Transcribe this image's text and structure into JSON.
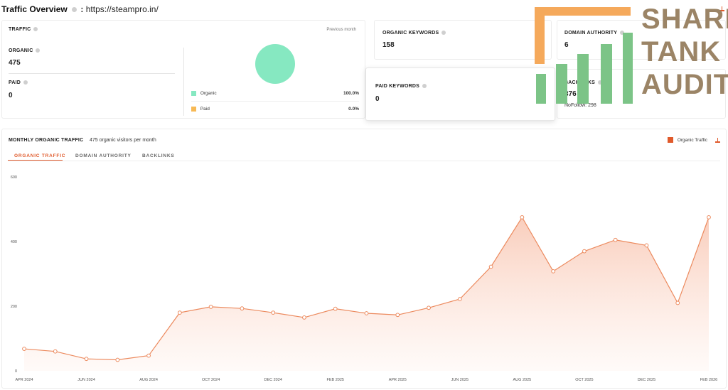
{
  "header": {
    "title": "Traffic Overview",
    "separator": ":",
    "url": "https://steampro.in/"
  },
  "traffic_card": {
    "label": "TRAFFIC",
    "period": "Previous month",
    "organic_label": "ORGANIC",
    "organic_value": "475",
    "paid_label": "PAID",
    "paid_value": "0",
    "legend": [
      {
        "name": "Organic",
        "percent": "100.0%",
        "color": "#86e8c1"
      },
      {
        "name": "Paid",
        "percent": "0.0%",
        "color": "#f7b955"
      }
    ]
  },
  "organic_keywords": {
    "label": "ORGANIC KEYWORDS",
    "value": "158"
  },
  "domain_authority": {
    "label": "DOMAIN AUTHORITY",
    "value": "6"
  },
  "paid_keywords": {
    "label": "PAID KEYWORDS",
    "value": "0"
  },
  "backlinks": {
    "label": "BACKLINKS",
    "value": "376",
    "nofollow": "NoFollow: 298"
  },
  "monthly": {
    "title": "MONTHLY ORGANIC TRAFFIC",
    "subtitle": "475 organic visitors per month",
    "legend_label": "Organic Traffic",
    "tabs": [
      "ORGANIC TRAFFIC",
      "DOMAIN AUTHORITY",
      "BACKLINKS"
    ]
  },
  "watermark": {
    "line1": "SHARK",
    "line2": "TANK",
    "line3": "AUDITS"
  },
  "colors": {
    "accent": "#e05a2b",
    "line": "#ec8a5e",
    "organic": "#86e8c1",
    "paid": "#f7b955",
    "bars_green": "#7cc487",
    "bars_orange": "#f5a95b"
  },
  "chart_data": {
    "type": "area",
    "x": [
      "APR 2024",
      "MAY 2024",
      "JUN 2024",
      "JUL 2024",
      "AUG 2024",
      "SEP 2024",
      "OCT 2024",
      "NOV 2024",
      "DEC 2024",
      "JAN 2025",
      "FEB 2025",
      "MAR 2025",
      "APR 2025",
      "MAY 2025",
      "JUN 2025",
      "JUL 2025",
      "AUG 2025",
      "SEP 2025",
      "OCT 2025",
      "NOV 2025",
      "DEC 2025",
      "JAN 2026",
      "FEB 2026"
    ],
    "x_tick_labels": [
      "APR 2024",
      "JUN 2024",
      "AUG 2024",
      "OCT 2024",
      "DEC 2024",
      "FEB 2025",
      "APR 2025",
      "JUN 2025",
      "AUG 2025",
      "OCT 2025",
      "DEC 2025",
      "FEB 2026"
    ],
    "series": [
      {
        "name": "Organic Traffic",
        "values": [
          68,
          60,
          37,
          34,
          47,
          180,
          198,
          193,
          180,
          165,
          192,
          178,
          173,
          195,
          222,
          322,
          475,
          308,
          370,
          405,
          388,
          210,
          475
        ]
      }
    ],
    "ylim": [
      0,
      600
    ],
    "yticks": [
      0,
      200,
      400,
      600
    ],
    "grid": false,
    "legend": "top-right"
  }
}
